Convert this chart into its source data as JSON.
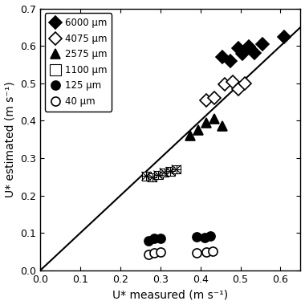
{
  "title": "",
  "xlabel": "U* measured (m s⁻¹)",
  "ylabel": "U* estimated (m s⁻¹)",
  "xlim": [
    0.0,
    0.65
  ],
  "ylim": [
    0.0,
    0.7
  ],
  "xticks": [
    0.0,
    0.1,
    0.2,
    0.3,
    0.4,
    0.5,
    0.6
  ],
  "yticks": [
    0.0,
    0.1,
    0.2,
    0.3,
    0.4,
    0.5,
    0.6,
    0.7
  ],
  "unity_line_x": [
    0.0,
    0.65
  ],
  "unity_line_y": [
    0.0,
    0.65
  ],
  "series": [
    {
      "label": "6000 μm",
      "marker": "D",
      "color": "black",
      "filled": true,
      "markersize": 8,
      "x": [
        0.455,
        0.475,
        0.495,
        0.505,
        0.52,
        0.535,
        0.555,
        0.61
      ],
      "y": [
        0.57,
        0.56,
        0.595,
        0.578,
        0.598,
        0.582,
        0.605,
        0.625
      ]
    },
    {
      "label": "4075 μm",
      "marker": "D",
      "color": "black",
      "filled": false,
      "markersize": 8,
      "x": [
        0.415,
        0.435,
        0.46,
        0.48,
        0.495,
        0.51
      ],
      "y": [
        0.455,
        0.46,
        0.498,
        0.505,
        0.485,
        0.5
      ]
    },
    {
      "label": "2575 μm",
      "marker": "^",
      "color": "black",
      "filled": true,
      "markersize": 8,
      "x": [
        0.375,
        0.395,
        0.415,
        0.435,
        0.455
      ],
      "y": [
        0.36,
        0.375,
        0.395,
        0.405,
        0.385
      ]
    },
    {
      "label": "1100 μm",
      "marker": "X_special",
      "color": "gray",
      "filled": true,
      "markersize": 10,
      "x": [
        0.265,
        0.28,
        0.295,
        0.31,
        0.325,
        0.34
      ],
      "y": [
        0.252,
        0.248,
        0.255,
        0.262,
        0.265,
        0.27
      ]
    },
    {
      "label": "125 μm",
      "marker": "o",
      "color": "black",
      "filled": true,
      "markersize": 8,
      "x": [
        0.27,
        0.285,
        0.3,
        0.39,
        0.41,
        0.425
      ],
      "y": [
        0.08,
        0.085,
        0.085,
        0.09,
        0.088,
        0.092
      ]
    },
    {
      "label": "40 μm",
      "marker": "o",
      "color": "black",
      "filled": false,
      "markersize": 8,
      "x": [
        0.27,
        0.285,
        0.3,
        0.39,
        0.415,
        0.43
      ],
      "y": [
        0.042,
        0.047,
        0.05,
        0.048,
        0.05,
        0.052
      ]
    }
  ],
  "legend_loc": "upper left",
  "legend_fontsize": 8.5,
  "axis_fontsize": 10,
  "tick_fontsize": 9
}
